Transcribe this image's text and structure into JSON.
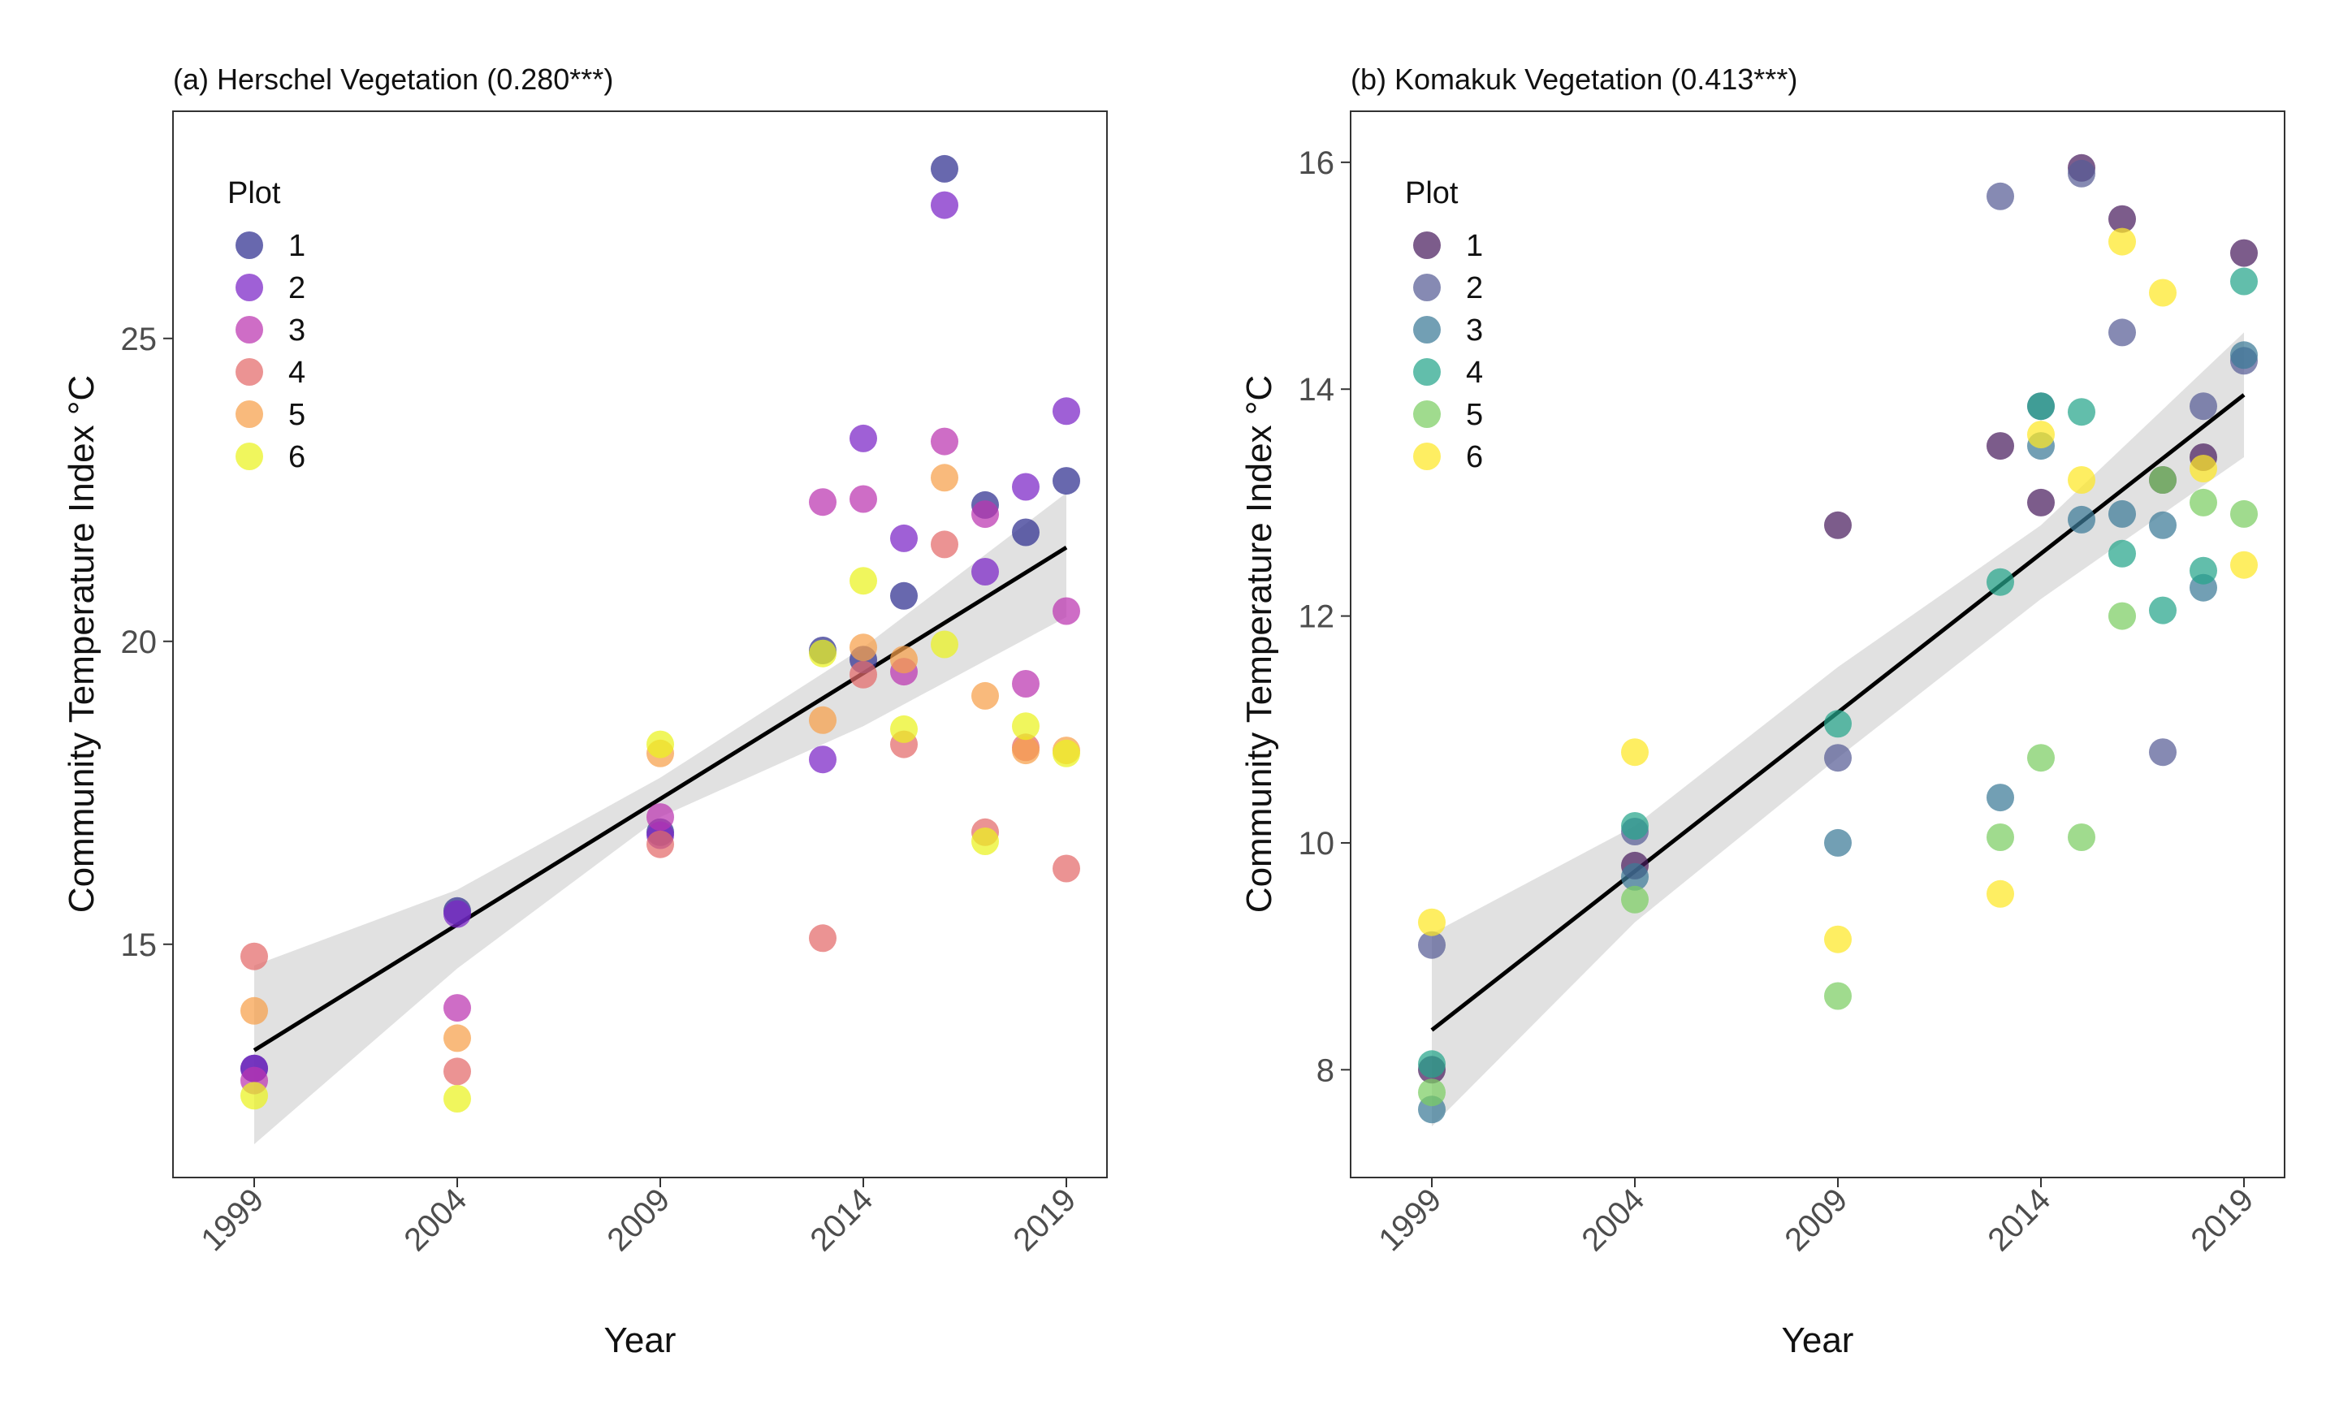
{
  "chart_data": [
    {
      "type": "scatter",
      "title": "(a) Herschel Vegetation (0.280***)",
      "xlabel": "Year",
      "ylabel": "Community Temperature Index °C",
      "xlim": [
        1997,
        2020
      ],
      "ylim": [
        11.15,
        28.75
      ],
      "x_ticks": [
        1999,
        2004,
        2009,
        2014,
        2019
      ],
      "y_ticks": [
        15,
        20,
        25
      ],
      "legend": {
        "title": "Plot",
        "position": "top-left",
        "entries": [
          "1",
          "2",
          "3",
          "4",
          "5",
          "6"
        ]
      },
      "colors": [
        "#2e2e8f",
        "#7a22c6",
        "#bb35b0",
        "#e36a6a",
        "#f6a04a",
        "#eaf21e"
      ],
      "trend": {
        "x": [
          1999,
          2019
        ],
        "y": [
          13.25,
          21.55
        ]
      },
      "ci_band": {
        "x": [
          1999,
          2004,
          2009,
          2014,
          2019
        ],
        "lower": [
          11.7,
          14.6,
          17.1,
          18.6,
          20.4
        ],
        "upper": [
          14.65,
          15.9,
          17.75,
          19.9,
          22.45
        ]
      },
      "series": [
        {
          "name": "1",
          "points": [
            [
              1999,
              12.95
            ],
            [
              2004,
              15.55
            ],
            [
              2009,
              16.85
            ],
            [
              2013,
              19.85
            ],
            [
              2014,
              19.7
            ],
            [
              2015,
              20.75
            ],
            [
              2016,
              27.8
            ],
            [
              2017,
              22.25
            ],
            [
              2018,
              21.8
            ],
            [
              2019,
              22.65
            ]
          ]
        },
        {
          "name": "2",
          "points": [
            [
              1999,
              12.95
            ],
            [
              2004,
              15.5
            ],
            [
              2009,
              16.8
            ],
            [
              2013,
              18.05
            ],
            [
              2014,
              23.35
            ],
            [
              2015,
              21.7
            ],
            [
              2016,
              27.2
            ],
            [
              2017,
              21.15
            ],
            [
              2018,
              22.55
            ],
            [
              2019,
              23.8
            ]
          ]
        },
        {
          "name": "3",
          "points": [
            [
              1999,
              12.75
            ],
            [
              2004,
              13.95
            ],
            [
              2009,
              17.1
            ],
            [
              2013,
              22.3
            ],
            [
              2014,
              22.35
            ],
            [
              2015,
              19.5
            ],
            [
              2016,
              23.3
            ],
            [
              2017,
              22.1
            ],
            [
              2018,
              19.3
            ],
            [
              2019,
              20.5
            ]
          ]
        },
        {
          "name": "4",
          "points": [
            [
              1999,
              14.8
            ],
            [
              2004,
              12.9
            ],
            [
              2009,
              16.65
            ],
            [
              2013,
              15.1
            ],
            [
              2014,
              19.45
            ],
            [
              2015,
              18.3
            ],
            [
              2016,
              21.6
            ],
            [
              2017,
              16.85
            ],
            [
              2018,
              18.25
            ],
            [
              2019,
              16.25
            ]
          ]
        },
        {
          "name": "5",
          "points": [
            [
              1999,
              13.9
            ],
            [
              2004,
              13.45
            ],
            [
              2009,
              18.15
            ],
            [
              2013,
              18.7
            ],
            [
              2014,
              19.9
            ],
            [
              2015,
              19.7
            ],
            [
              2016,
              22.7
            ],
            [
              2017,
              19.1
            ],
            [
              2018,
              18.2
            ],
            [
              2019,
              18.2
            ]
          ]
        },
        {
          "name": "6",
          "points": [
            [
              1999,
              12.5
            ],
            [
              2004,
              12.45
            ],
            [
              2009,
              18.3
            ],
            [
              2013,
              19.8
            ],
            [
              2014,
              21.0
            ],
            [
              2015,
              18.55
            ],
            [
              2016,
              19.95
            ],
            [
              2017,
              16.7
            ],
            [
              2018,
              18.6
            ],
            [
              2019,
              18.15
            ]
          ]
        }
      ]
    },
    {
      "type": "scatter",
      "title": "(b) Komakuk Vegetation (0.413***)",
      "xlabel": "Year",
      "ylabel": "Community Temperature Index °C",
      "xlim": [
        1997,
        2020
      ],
      "ylim": [
        7.05,
        16.45
      ],
      "x_ticks": [
        1999,
        2004,
        2009,
        2014,
        2019
      ],
      "y_ticks": [
        8,
        10,
        12,
        14,
        16
      ],
      "legend": {
        "title": "Plot",
        "position": "top-left",
        "entries": [
          "1",
          "2",
          "3",
          "4",
          "5",
          "6"
        ]
      },
      "colors": [
        "#4a1d5e",
        "#575d96",
        "#3b7a97",
        "#26a58a",
        "#7ccd63",
        "#fde725"
      ],
      "trend": {
        "x": [
          1999,
          2019
        ],
        "y": [
          8.35,
          13.95
        ]
      },
      "ci_band": {
        "x": [
          1999,
          2004,
          2009,
          2014,
          2019
        ],
        "lower": [
          7.5,
          9.3,
          10.75,
          12.15,
          13.4
        ],
        "upper": [
          9.2,
          10.15,
          11.55,
          12.8,
          14.5
        ]
      },
      "series": [
        {
          "name": "1",
          "points": [
            [
              1999,
              8.0
            ],
            [
              2004,
              9.8
            ],
            [
              2009,
              12.8
            ],
            [
              2013,
              13.5
            ],
            [
              2014,
              13.0
            ],
            [
              2015,
              15.95
            ],
            [
              2016,
              15.5
            ],
            [
              2017,
              13.2
            ],
            [
              2018,
              13.4
            ],
            [
              2019,
              15.2
            ]
          ]
        },
        {
          "name": "2",
          "points": [
            [
              1999,
              9.1
            ],
            [
              2004,
              10.1
            ],
            [
              2009,
              10.75
            ],
            [
              2013,
              15.7
            ],
            [
              2014,
              13.85
            ],
            [
              2015,
              15.9
            ],
            [
              2016,
              14.5
            ],
            [
              2017,
              10.8
            ],
            [
              2018,
              13.85
            ],
            [
              2019,
              14.25
            ]
          ]
        },
        {
          "name": "3",
          "points": [
            [
              1999,
              7.65
            ],
            [
              2004,
              9.7
            ],
            [
              2009,
              10.0
            ],
            [
              2013,
              10.4
            ],
            [
              2014,
              13.5
            ],
            [
              2015,
              12.85
            ],
            [
              2016,
              12.9
            ],
            [
              2017,
              12.8
            ],
            [
              2018,
              12.25
            ],
            [
              2019,
              14.3
            ]
          ]
        },
        {
          "name": "4",
          "points": [
            [
              1999,
              8.05
            ],
            [
              2004,
              10.15
            ],
            [
              2009,
              11.05
            ],
            [
              2013,
              12.3
            ],
            [
              2014,
              13.85
            ],
            [
              2015,
              13.8
            ],
            [
              2016,
              12.55
            ],
            [
              2017,
              12.05
            ],
            [
              2018,
              12.4
            ],
            [
              2019,
              14.95
            ]
          ]
        },
        {
          "name": "5",
          "points": [
            [
              1999,
              7.8
            ],
            [
              2004,
              9.5
            ],
            [
              2009,
              8.65
            ],
            [
              2013,
              10.05
            ],
            [
              2014,
              10.75
            ],
            [
              2015,
              10.05
            ],
            [
              2016,
              12.0
            ],
            [
              2017,
              13.2
            ],
            [
              2018,
              13.0
            ],
            [
              2019,
              12.9
            ]
          ]
        },
        {
          "name": "6",
          "points": [
            [
              1999,
              9.3
            ],
            [
              2004,
              10.8
            ],
            [
              2009,
              9.15
            ],
            [
              2013,
              9.55
            ],
            [
              2014,
              13.6
            ],
            [
              2015,
              13.2
            ],
            [
              2016,
              15.3
            ],
            [
              2017,
              14.85
            ],
            [
              2018,
              13.3
            ],
            [
              2019,
              12.45
            ]
          ]
        }
      ]
    }
  ]
}
